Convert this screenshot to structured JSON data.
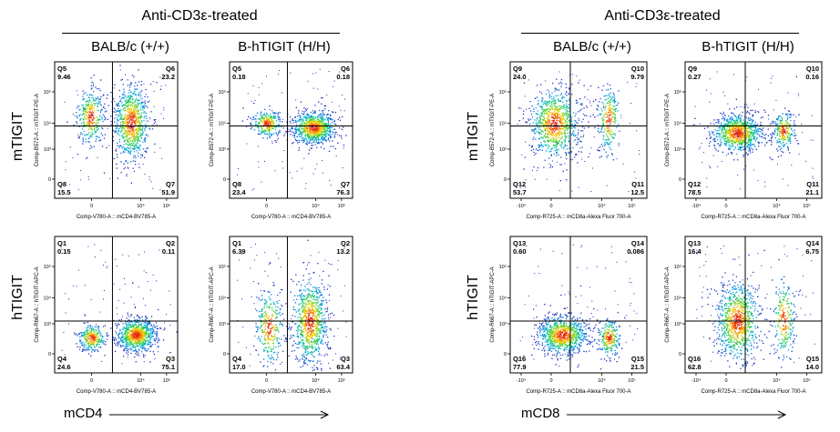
{
  "groups": [
    {
      "title": "Anti-CD3ε-treated",
      "strains": [
        "BALB/c (+/+)",
        "B-hTIGIT (H/H)"
      ],
      "x_marker": "mCD4",
      "row_labels": [
        "mTIGIT",
        "hTIGIT"
      ]
    },
    {
      "title": "Anti-CD3ε-treated",
      "strains": [
        "BALB/c (+/+)",
        "B-hTIGIT (H/H)"
      ],
      "x_marker": "mCD8",
      "row_labels": [
        "mTIGIT",
        "hTIGIT"
      ]
    }
  ],
  "chart_data": [
    {
      "type": "scatter",
      "group": 0,
      "row": 0,
      "col": 0,
      "xlabel": "Comp-V780-A :: mCD4-BV785-A",
      "ylabel": "Comp-B572-A :: mTIGIT-PE-A",
      "x_ticks": [
        "0",
        "10⁴",
        "10⁵"
      ],
      "y_ticks": [
        "0",
        "10³",
        "10⁴",
        "10⁵"
      ],
      "quadrants": [
        {
          "id": "Q5",
          "value": "9.46"
        },
        {
          "id": "Q6",
          "value": "23.2"
        },
        {
          "id": "Q8",
          "value": "15.5"
        },
        {
          "id": "Q7",
          "value": "51.9"
        }
      ],
      "populations": [
        {
          "x": 0.29,
          "y": 0.4,
          "sx": 0.055,
          "sy": 0.1,
          "w": 0.3
        },
        {
          "x": 0.62,
          "y": 0.44,
          "sx": 0.07,
          "sy": 0.14,
          "w": 0.7
        }
      ]
    },
    {
      "type": "scatter",
      "group": 0,
      "row": 0,
      "col": 1,
      "xlabel": "Comp-V780-A :: mCD4-BV785-A",
      "ylabel": "Comp-B572-A :: mTIGIT-PE-A",
      "x_ticks": [
        "0",
        "10⁴",
        "10⁵"
      ],
      "y_ticks": [
        "0",
        "10³",
        "10⁴",
        "10⁵"
      ],
      "quadrants": [
        {
          "id": "Q5",
          "value": "0.18"
        },
        {
          "id": "Q6",
          "value": "0.18"
        },
        {
          "id": "Q8",
          "value": "23.4"
        },
        {
          "id": "Q7",
          "value": "76.3"
        }
      ],
      "populations": [
        {
          "x": 0.3,
          "y": 0.45,
          "sx": 0.06,
          "sy": 0.05,
          "w": 0.25
        },
        {
          "x": 0.68,
          "y": 0.48,
          "sx": 0.09,
          "sy": 0.06,
          "w": 0.75
        }
      ]
    },
    {
      "type": "scatter",
      "group": 0,
      "row": 1,
      "col": 0,
      "xlabel": "Comp-V780-A :: mCD4-BV785-A",
      "ylabel": "Comp-R667-A :: hTIGIT-APC-A",
      "x_ticks": [
        "0",
        "10⁴",
        "10⁵"
      ],
      "y_ticks": [
        "0",
        "10³",
        "10⁴",
        "10⁵"
      ],
      "quadrants": [
        {
          "id": "Q1",
          "value": "0.15"
        },
        {
          "id": "Q2",
          "value": "0.11"
        },
        {
          "id": "Q4",
          "value": "24.6"
        },
        {
          "id": "Q3",
          "value": "75.1"
        }
      ],
      "populations": [
        {
          "x": 0.3,
          "y": 0.74,
          "sx": 0.055,
          "sy": 0.05,
          "w": 0.27
        },
        {
          "x": 0.66,
          "y": 0.72,
          "sx": 0.08,
          "sy": 0.06,
          "w": 0.73
        }
      ]
    },
    {
      "type": "scatter",
      "group": 0,
      "row": 1,
      "col": 1,
      "xlabel": "Comp-V780-A :: mCD4-BV785-A",
      "ylabel": "Comp-R667-A :: hTIGIT-APC-A",
      "x_ticks": [
        "0",
        "10⁴",
        "10⁵"
      ],
      "y_ticks": [
        "0",
        "10³",
        "10⁴",
        "10⁵"
      ],
      "quadrants": [
        {
          "id": "Q1",
          "value": "6.39"
        },
        {
          "id": "Q2",
          "value": "13.2"
        },
        {
          "id": "Q4",
          "value": "17.0"
        },
        {
          "id": "Q3",
          "value": "63.4"
        }
      ],
      "populations": [
        {
          "x": 0.32,
          "y": 0.66,
          "sx": 0.055,
          "sy": 0.14,
          "w": 0.28
        },
        {
          "x": 0.65,
          "y": 0.62,
          "sx": 0.07,
          "sy": 0.16,
          "w": 0.72
        }
      ]
    },
    {
      "type": "scatter",
      "group": 1,
      "row": 0,
      "col": 0,
      "xlabel": "Comp-R725-A :: mCD8a-Alexa Fluor 700-A",
      "ylabel": "Comp-B572-A :: mTIGIT-PE-A",
      "x_ticks": [
        "-10⁴",
        "0",
        "10⁴",
        "10⁵"
      ],
      "y_ticks": [
        "0",
        "10³",
        "10⁴",
        "10⁵"
      ],
      "quadrants": [
        {
          "id": "Q9",
          "value": "24.0"
        },
        {
          "id": "Q10",
          "value": "9.79"
        },
        {
          "id": "Q12",
          "value": "53.7"
        },
        {
          "id": "Q11",
          "value": "12.5"
        }
      ],
      "populations": [
        {
          "x": 0.32,
          "y": 0.45,
          "sx": 0.09,
          "sy": 0.13,
          "w": 0.78
        },
        {
          "x": 0.72,
          "y": 0.42,
          "sx": 0.04,
          "sy": 0.12,
          "w": 0.22
        }
      ]
    },
    {
      "type": "scatter",
      "group": 1,
      "row": 0,
      "col": 1,
      "xlabel": "Comp-R725-A :: mCD8a-Alexa Fluor 700-A",
      "ylabel": "Comp-B572-A :: mTIGIT-PE-A",
      "x_ticks": [
        "-10⁴",
        "0",
        "10⁴",
        "10⁵"
      ],
      "y_ticks": [
        "0",
        "10³",
        "10⁴",
        "10⁵"
      ],
      "quadrants": [
        {
          "id": "Q9",
          "value": "0.27"
        },
        {
          "id": "Q10",
          "value": "0.16"
        },
        {
          "id": "Q12",
          "value": "78.5"
        },
        {
          "id": "Q11",
          "value": "21.1"
        }
      ],
      "populations": [
        {
          "x": 0.38,
          "y": 0.52,
          "sx": 0.09,
          "sy": 0.07,
          "w": 0.79
        },
        {
          "x": 0.72,
          "y": 0.5,
          "sx": 0.04,
          "sy": 0.07,
          "w": 0.21
        }
      ]
    },
    {
      "type": "scatter",
      "group": 1,
      "row": 1,
      "col": 0,
      "xlabel": "Comp-R725-A :: mCD8a-Alexa Fluor 700-A",
      "ylabel": "Comp-R667-A :: hTIGIT-APC-A",
      "x_ticks": [
        "-10⁴",
        "0",
        "10⁴",
        "10⁵"
      ],
      "y_ticks": [
        "0",
        "10³",
        "10⁴",
        "10⁵"
      ],
      "quadrants": [
        {
          "id": "Q13",
          "value": "0.60"
        },
        {
          "id": "Q14",
          "value": "0.086"
        },
        {
          "id": "Q16",
          "value": "77.9"
        },
        {
          "id": "Q15",
          "value": "21.5"
        }
      ],
      "populations": [
        {
          "x": 0.38,
          "y": 0.72,
          "sx": 0.09,
          "sy": 0.07,
          "w": 0.78
        },
        {
          "x": 0.72,
          "y": 0.74,
          "sx": 0.04,
          "sy": 0.07,
          "w": 0.22
        }
      ]
    },
    {
      "type": "scatter",
      "group": 1,
      "row": 1,
      "col": 1,
      "xlabel": "Comp-R725-A :: mCD8a-Alexa Fluor 700-A",
      "ylabel": "Comp-R667-A :: hTIGIT-APC-A",
      "x_ticks": [
        "-10⁴",
        "0",
        "10⁴",
        "10⁵"
      ],
      "y_ticks": [
        "0",
        "10³",
        "10⁴",
        "10⁵"
      ],
      "quadrants": [
        {
          "id": "Q13",
          "value": "16.4"
        },
        {
          "id": "Q14",
          "value": "6.75"
        },
        {
          "id": "Q16",
          "value": "62.8"
        },
        {
          "id": "Q15",
          "value": "14.0"
        }
      ],
      "populations": [
        {
          "x": 0.38,
          "y": 0.62,
          "sx": 0.08,
          "sy": 0.15,
          "w": 0.78
        },
        {
          "x": 0.72,
          "y": 0.6,
          "sx": 0.04,
          "sy": 0.15,
          "w": 0.22
        }
      ]
    }
  ]
}
